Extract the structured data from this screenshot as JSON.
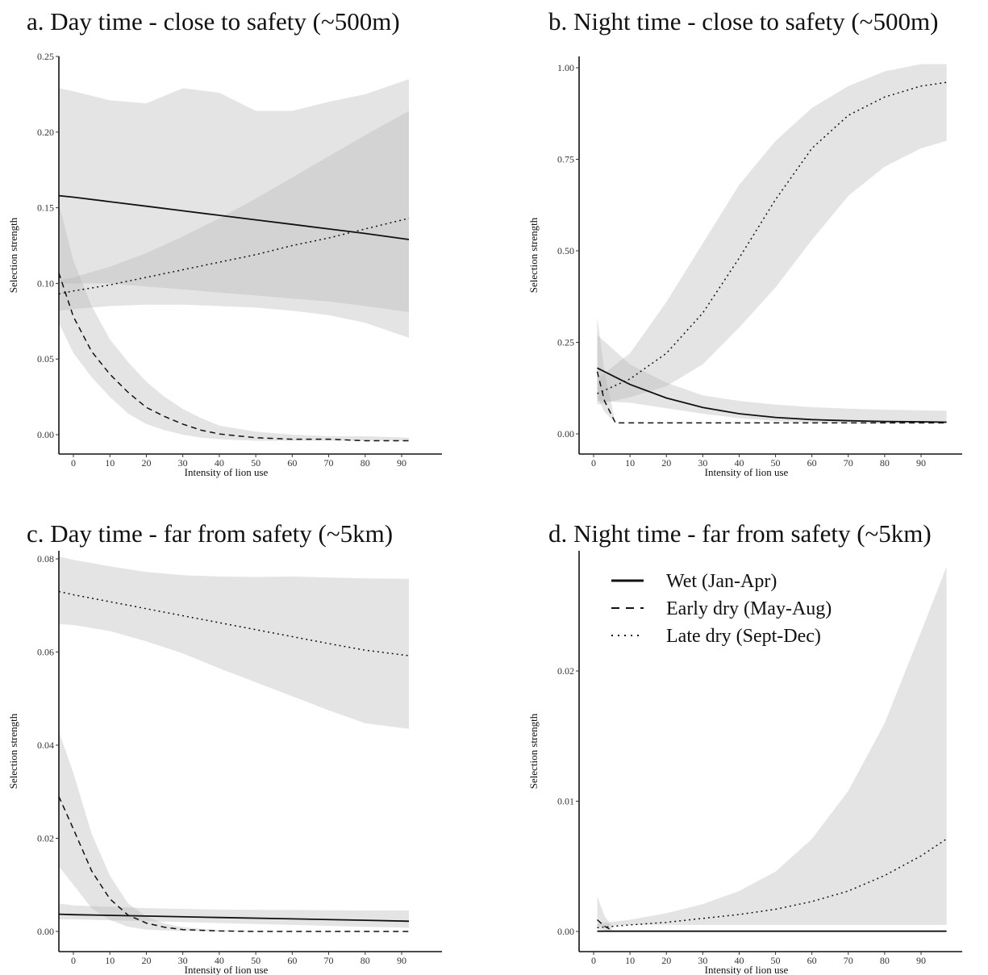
{
  "chart_data": [
    {
      "id": "a",
      "type": "line",
      "title": "a. Day time - close to safety (~500m)",
      "xlabel": "Intensity of lion use",
      "ylabel": "Selection strength",
      "xlim": [
        -4,
        92
      ],
      "ylim": [
        0,
        0.25
      ],
      "xticks": [
        0,
        10,
        20,
        30,
        40,
        50,
        60,
        70,
        80,
        90
      ],
      "yticks": [
        0,
        0.05,
        0.1,
        0.15,
        0.2,
        0.25
      ],
      "ytick_labels": [
        "0.00",
        "0.05",
        "0.10",
        "0.15",
        "0.20",
        "0.25"
      ],
      "grid": false,
      "series": [
        {
          "name": "Wet (Jan-Apr)",
          "style": "solid",
          "x": [
            -4,
            0,
            10,
            20,
            30,
            40,
            50,
            60,
            70,
            80,
            92
          ],
          "y": [
            0.158,
            0.157,
            0.154,
            0.151,
            0.148,
            0.145,
            0.142,
            0.139,
            0.136,
            0.133,
            0.129
          ],
          "ci_low": [
            0.082,
            0.083,
            0.085,
            0.086,
            0.086,
            0.085,
            0.084,
            0.082,
            0.079,
            0.074,
            0.064
          ],
          "ci_high": [
            0.229,
            0.227,
            0.221,
            0.219,
            0.229,
            0.226,
            0.214,
            0.214,
            0.22,
            0.225,
            0.235
          ]
        },
        {
          "name": "Early dry (May-Aug)",
          "style": "dashed",
          "x": [
            -4,
            0,
            5,
            10,
            15,
            20,
            25,
            30,
            35,
            40,
            50,
            60,
            70,
            80,
            92
          ],
          "y": [
            0.107,
            0.078,
            0.055,
            0.04,
            0.028,
            0.018,
            0.012,
            0.007,
            0.003,
            0.0005,
            -0.002,
            -0.003,
            -0.003,
            -0.004,
            -0.004
          ],
          "ci_low": [
            0.074,
            0.054,
            0.038,
            0.025,
            0.014,
            0.007,
            0.003,
            0.0,
            -0.002,
            -0.003,
            -0.004,
            -0.004,
            -0.004,
            -0.004,
            -0.004
          ],
          "ci_high": [
            0.153,
            0.115,
            0.085,
            0.063,
            0.048,
            0.035,
            0.025,
            0.017,
            0.011,
            0.006,
            0.002,
            0.0,
            -0.001,
            -0.001,
            -0.002
          ]
        },
        {
          "name": "Late dry (Sept-Dec)",
          "style": "dotted",
          "x": [
            -4,
            0,
            10,
            20,
            30,
            40,
            50,
            60,
            70,
            80,
            92
          ],
          "y": [
            0.093,
            0.095,
            0.099,
            0.104,
            0.109,
            0.114,
            0.119,
            0.125,
            0.13,
            0.136,
            0.143
          ],
          "ci_low": [
            0.1,
            0.1,
            0.1,
            0.098,
            0.096,
            0.094,
            0.092,
            0.09,
            0.088,
            0.085,
            0.081
          ],
          "ci_high": [
            0.102,
            0.104,
            0.111,
            0.12,
            0.131,
            0.143,
            0.156,
            0.17,
            0.184,
            0.198,
            0.214
          ]
        }
      ]
    },
    {
      "id": "b",
      "type": "line",
      "title": "b. Night time - close to safety (~500m)",
      "xlabel": "Intensity of lion use",
      "ylabel": "Selection strength",
      "xlim": [
        -4,
        105
      ],
      "ylim": [
        0,
        1.0
      ],
      "xticks": [
        0,
        10,
        20,
        30,
        40,
        50,
        60,
        70,
        80,
        90
      ],
      "yticks": [
        0,
        0.25,
        0.5,
        0.75,
        1.0
      ],
      "ytick_labels": [
        "0.00",
        "0.25",
        "0.50",
        "0.75",
        "1.00"
      ],
      "grid": false,
      "series": [
        {
          "name": "Wet (Jan-Apr)",
          "style": "solid",
          "x": [
            1,
            10,
            20,
            30,
            40,
            50,
            60,
            70,
            80,
            90,
            97
          ],
          "y": [
            0.18,
            0.135,
            0.098,
            0.072,
            0.055,
            0.045,
            0.039,
            0.036,
            0.034,
            0.033,
            0.032
          ],
          "ci_low": [
            0.09,
            0.085,
            0.07,
            0.055,
            0.043,
            0.035,
            0.031,
            0.029,
            0.028,
            0.028,
            0.028
          ],
          "ci_high": [
            0.27,
            0.19,
            0.14,
            0.105,
            0.09,
            0.08,
            0.073,
            0.069,
            0.066,
            0.064,
            0.063
          ]
        },
        {
          "name": "Early dry (May-Aug)",
          "style": "dashed",
          "x": [
            1,
            3,
            6,
            10,
            20,
            40,
            60,
            80,
            97
          ],
          "y": [
            0.17,
            0.09,
            0.03,
            0.03,
            0.03,
            0.03,
            0.03,
            0.03,
            0.03
          ],
          "ci_low": [
            0.1,
            0.06,
            0.03,
            0.03,
            0.03,
            0.03,
            0.03,
            0.03,
            0.03
          ],
          "ci_high": [
            0.32,
            0.17,
            0.03,
            0.03,
            0.03,
            0.03,
            0.03,
            0.03,
            0.03
          ]
        },
        {
          "name": "Late dry (Sept-Dec)",
          "style": "dotted",
          "x": [
            1,
            10,
            20,
            30,
            40,
            50,
            60,
            70,
            80,
            90,
            97
          ],
          "y": [
            0.11,
            0.15,
            0.22,
            0.33,
            0.48,
            0.64,
            0.78,
            0.87,
            0.92,
            0.95,
            0.96
          ],
          "ci_low": [
            0.08,
            0.1,
            0.13,
            0.19,
            0.29,
            0.4,
            0.53,
            0.65,
            0.73,
            0.78,
            0.8
          ],
          "ci_high": [
            0.15,
            0.22,
            0.36,
            0.52,
            0.68,
            0.8,
            0.89,
            0.95,
            0.99,
            1.01,
            1.01
          ]
        }
      ]
    },
    {
      "id": "c",
      "type": "line",
      "title": "c. Day time - far from safety (~5km)",
      "xlabel": "Intensity of lion use",
      "ylabel": "Selection strength",
      "xlim": [
        -4,
        92
      ],
      "ylim": [
        0,
        0.08
      ],
      "xticks": [
        0,
        10,
        20,
        30,
        40,
        50,
        60,
        70,
        80,
        90
      ],
      "yticks": [
        0,
        0.02,
        0.04,
        0.06,
        0.08
      ],
      "ytick_labels": [
        "0.00",
        "0.02",
        "0.04",
        "0.06",
        "0.08"
      ],
      "grid": false,
      "series": [
        {
          "name": "Wet (Jan-Apr)",
          "style": "solid",
          "x": [
            -4,
            0,
            20,
            40,
            60,
            80,
            92
          ],
          "y": [
            0.0037,
            0.0036,
            0.0033,
            0.003,
            0.0027,
            0.0024,
            0.0022
          ],
          "ci_low": [
            0.0026,
            0.0026,
            0.0022,
            0.0018,
            0.0014,
            0.001,
            0.0008
          ],
          "ci_high": [
            0.006,
            0.0056,
            0.005,
            0.0047,
            0.0046,
            0.0045,
            0.0045
          ]
        },
        {
          "name": "Early dry (May-Aug)",
          "style": "dashed",
          "x": [
            -4,
            0,
            5,
            10,
            15,
            20,
            25,
            30,
            40,
            50,
            60,
            70,
            80,
            92
          ],
          "y": [
            0.029,
            0.022,
            0.013,
            0.007,
            0.0035,
            0.0018,
            0.0009,
            0.0004,
            0.0001,
            0.0,
            0.0,
            0.0,
            0.0,
            0.0
          ],
          "ci_low": [
            0.014,
            0.01,
            0.005,
            0.0025,
            0.001,
            0.0004,
            0.0002,
            0.0001,
            0.0,
            0.0,
            0.0,
            0.0,
            0.0,
            0.0
          ],
          "ci_high": [
            0.043,
            0.034,
            0.021,
            0.012,
            0.006,
            0.0032,
            0.0017,
            0.0009,
            0.0003,
            0.0001,
            0.0,
            0.0,
            0.0,
            0.0
          ]
        },
        {
          "name": "Late dry (Sept-Dec)",
          "style": "dotted",
          "x": [
            -4,
            0,
            10,
            20,
            30,
            40,
            50,
            60,
            70,
            80,
            92
          ],
          "y": [
            0.073,
            0.0723,
            0.0708,
            0.0693,
            0.0678,
            0.0663,
            0.0648,
            0.0633,
            0.0618,
            0.0604,
            0.0592
          ],
          "ci_low": [
            0.066,
            0.0658,
            0.0645,
            0.0623,
            0.0597,
            0.0565,
            0.0535,
            0.0505,
            0.0475,
            0.0447,
            0.0435
          ],
          "ci_high": [
            0.0805,
            0.0798,
            0.0784,
            0.0772,
            0.0765,
            0.0762,
            0.0761,
            0.0762,
            0.076,
            0.0758,
            0.0757
          ]
        }
      ]
    },
    {
      "id": "d",
      "type": "line",
      "title": "d. Night time - far from safety (~5km)",
      "xlabel": "Intensity of lion use",
      "ylabel": "Selection strength",
      "xlim": [
        -4,
        105
      ],
      "ylim": [
        0,
        0.028
      ],
      "xticks": [
        0,
        10,
        20,
        30,
        40,
        50,
        60,
        70,
        80,
        90
      ],
      "yticks": [
        0,
        0.01,
        0.02
      ],
      "ytick_labels": [
        "0.00",
        "0.01",
        "0.02"
      ],
      "grid": false,
      "legend": {
        "placement": "top-left",
        "entries": [
          {
            "label": "Wet (Jan-Apr)",
            "style": "solid"
          },
          {
            "label": "Early dry (May-Aug)",
            "style": "dashed"
          },
          {
            "label": "Late dry (Sept-Dec)",
            "style": "dotted"
          }
        ]
      },
      "series": [
        {
          "name": "Wet (Jan-Apr)",
          "style": "solid",
          "x": [
            1,
            20,
            40,
            60,
            80,
            97
          ],
          "y": [
            2e-05,
            2e-05,
            2e-05,
            2e-05,
            2e-05,
            2e-05
          ],
          "ci_low": [
            0.0,
            0.0,
            0.0,
            0.0,
            0.0,
            0.0
          ],
          "ci_high": [
            4e-05,
            4e-05,
            4e-05,
            4e-05,
            4e-05,
            4e-05
          ]
        },
        {
          "name": "Early dry (May-Aug)",
          "style": "dashed",
          "x": [
            1,
            3,
            5
          ],
          "y": [
            0.0009,
            0.0004,
            0.0001
          ],
          "ci_low": [
            0.0002,
            0.0001,
            0.0
          ],
          "ci_high": [
            0.0027,
            0.0012,
            0.0004
          ]
        },
        {
          "name": "Late dry (Sept-Dec)",
          "style": "dotted",
          "x": [
            1,
            10,
            20,
            30,
            40,
            50,
            60,
            70,
            80,
            90,
            97
          ],
          "y": [
            0.0003,
            0.0005,
            0.0007,
            0.001,
            0.0013,
            0.0017,
            0.0023,
            0.0031,
            0.0043,
            0.0058,
            0.0071
          ],
          "ci_low": [
            0.0004,
            0.0005,
            0.0005,
            0.0005,
            0.0005,
            0.0005,
            0.0005,
            0.0005,
            0.0005,
            0.0005,
            0.0005
          ],
          "ci_high": [
            0.0006,
            0.0009,
            0.0014,
            0.0021,
            0.0031,
            0.0046,
            0.0071,
            0.0108,
            0.016,
            0.023,
            0.028
          ]
        }
      ]
    }
  ]
}
